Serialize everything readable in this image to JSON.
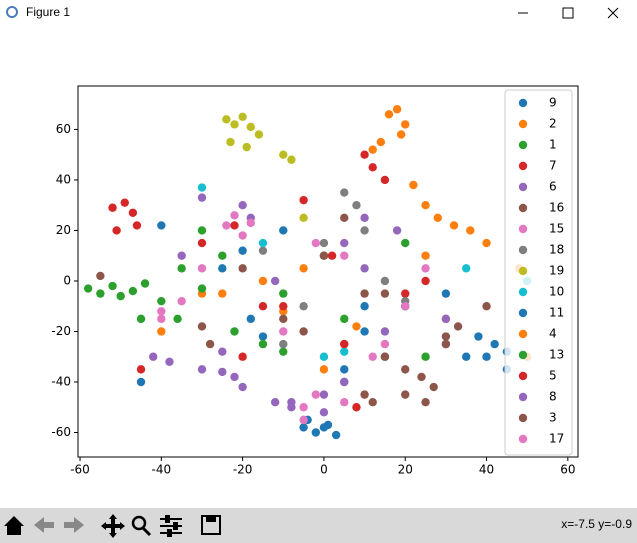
{
  "window": {
    "title": "Figure 1",
    "status": "x=-7.5  y=-0.9"
  },
  "chart_data": {
    "type": "scatter",
    "xlim": [
      -60.5,
      62.5
    ],
    "ylim": [
      -69.7,
      77.2
    ],
    "xticks": [
      -60,
      -40,
      -20,
      0,
      20,
      40,
      60
    ],
    "yticks": [
      -60,
      -40,
      -20,
      0,
      20,
      40,
      60
    ],
    "grid": false,
    "legend": "upper right",
    "series": [
      {
        "name": "9",
        "color": "#1f77b4",
        "x": [
          -2,
          0,
          3,
          -4,
          1,
          35,
          38,
          42,
          -18,
          -15,
          10,
          -25,
          45,
          30,
          5
        ],
        "y": [
          -60,
          -58,
          -61,
          -55,
          -57,
          -30,
          -22,
          -25,
          -15,
          -22,
          -10,
          5,
          -28,
          -5,
          -35
        ]
      },
      {
        "name": "2",
        "color": "#ff7f0e",
        "x": [
          16,
          18,
          20,
          19,
          14,
          12,
          22,
          28,
          32,
          36,
          25,
          -10,
          8,
          -30,
          40
        ],
        "y": [
          66,
          68,
          62,
          58,
          55,
          52,
          38,
          25,
          22,
          20,
          30,
          -12,
          -18,
          -5,
          15
        ]
      },
      {
        "name": "1",
        "color": "#2ca02c",
        "x": [
          -58,
          -55,
          -52,
          -50,
          -47,
          -44,
          -40,
          -36,
          -30,
          -22,
          -10,
          5,
          -25,
          20
        ],
        "y": [
          -3,
          -5,
          -2,
          -6,
          -4,
          -1,
          -8,
          -15,
          -3,
          -20,
          -28,
          -15,
          10,
          -10
        ]
      },
      {
        "name": "7",
        "color": "#d62728",
        "x": [
          -52,
          -49,
          -47,
          -51,
          -46,
          10,
          12,
          -5,
          -22,
          2,
          20,
          -15
        ],
        "y": [
          29,
          31,
          27,
          20,
          22,
          50,
          45,
          32,
          22,
          10,
          -5,
          -10
        ]
      },
      {
        "name": "6",
        "color": "#9467bd",
        "x": [
          -42,
          -38,
          -25,
          -22,
          -20,
          -18,
          -30,
          0,
          -8,
          -12,
          10,
          5,
          -35,
          15
        ],
        "y": [
          -30,
          -32,
          -36,
          -38,
          30,
          25,
          33,
          -45,
          -50,
          -48,
          5,
          15,
          10,
          -20
        ]
      },
      {
        "name": "16",
        "color": "#8c564b",
        "x": [
          20,
          24,
          27,
          30,
          33,
          10,
          15,
          -30,
          -28,
          -20,
          12,
          5,
          40,
          -55
        ],
        "y": [
          -35,
          -38,
          -42,
          -22,
          -18,
          -45,
          -5,
          -18,
          -25,
          5,
          -48,
          25,
          -10,
          2
        ]
      },
      {
        "name": "15",
        "color": "#e377c2",
        "x": [
          -5,
          -2,
          -24,
          -20,
          -35,
          -40,
          5,
          -10,
          15,
          25
        ],
        "y": [
          -50,
          -45,
          22,
          18,
          -8,
          -12,
          10,
          -20,
          -25,
          5
        ]
      },
      {
        "name": "18",
        "color": "#7f7f7f",
        "x": [
          5,
          8,
          10,
          0,
          -10,
          -5,
          15,
          20,
          -15
        ],
        "y": [
          35,
          30,
          20,
          15,
          -25,
          -10,
          0,
          -8,
          12
        ]
      },
      {
        "name": "19",
        "color": "#bcbd22",
        "x": [
          -24,
          -22,
          -20,
          -18,
          -16,
          -23,
          -19,
          -10,
          -8,
          -5
        ],
        "y": [
          64,
          62,
          65,
          61,
          58,
          55,
          53,
          50,
          48,
          25
        ]
      },
      {
        "name": "10",
        "color": "#17becf",
        "x": [
          -30,
          0,
          35,
          50,
          5,
          -15
        ],
        "y": [
          37,
          -30,
          5,
          0,
          -28,
          15
        ]
      },
      {
        "name": "11",
        "color": "#1f77b4",
        "x": [
          -40,
          -20,
          -10,
          5,
          10,
          15,
          20,
          30,
          40,
          45,
          -45,
          -5
        ],
        "y": [
          22,
          12,
          20,
          -40,
          -20,
          -30,
          -10,
          -25,
          -30,
          -35,
          -40,
          -58
        ]
      },
      {
        "name": "4",
        "color": "#ff7f0e",
        "x": [
          -25,
          -15,
          -5,
          5,
          25,
          30,
          48,
          50,
          -40,
          0
        ],
        "y": [
          -5,
          0,
          5,
          -25,
          10,
          -15,
          5,
          -30,
          -20,
          -35
        ]
      },
      {
        "name": "13",
        "color": "#2ca02c",
        "x": [
          -45,
          -30,
          -15,
          0,
          20,
          25,
          -10,
          -35
        ],
        "y": [
          -15,
          20,
          -25,
          10,
          15,
          -30,
          -5,
          5
        ]
      },
      {
        "name": "5",
        "color": "#d62728",
        "x": [
          -30,
          -10,
          5,
          15,
          -20,
          25,
          -45,
          8
        ],
        "y": [
          15,
          -10,
          -25,
          40,
          -30,
          0,
          -35,
          -50
        ]
      },
      {
        "name": "8",
        "color": "#9467bd",
        "x": [
          -30,
          -20,
          -8,
          0,
          5,
          10,
          18,
          30,
          -12,
          -25
        ],
        "y": [
          -35,
          -42,
          -48,
          -52,
          -40,
          25,
          20,
          -15,
          0,
          -28
        ]
      },
      {
        "name": "3",
        "color": "#8c564b",
        "x": [
          15,
          20,
          25,
          -10,
          -5,
          10,
          30,
          0
        ],
        "y": [
          -30,
          -45,
          -48,
          -15,
          -20,
          -5,
          -25,
          10
        ]
      },
      {
        "name": "17",
        "color": "#e377c2",
        "x": [
          -22,
          -18,
          -5,
          5,
          20,
          -30,
          -40,
          -2,
          12
        ],
        "y": [
          26,
          23,
          -55,
          -48,
          -10,
          5,
          -15,
          15,
          -30
        ]
      }
    ]
  }
}
